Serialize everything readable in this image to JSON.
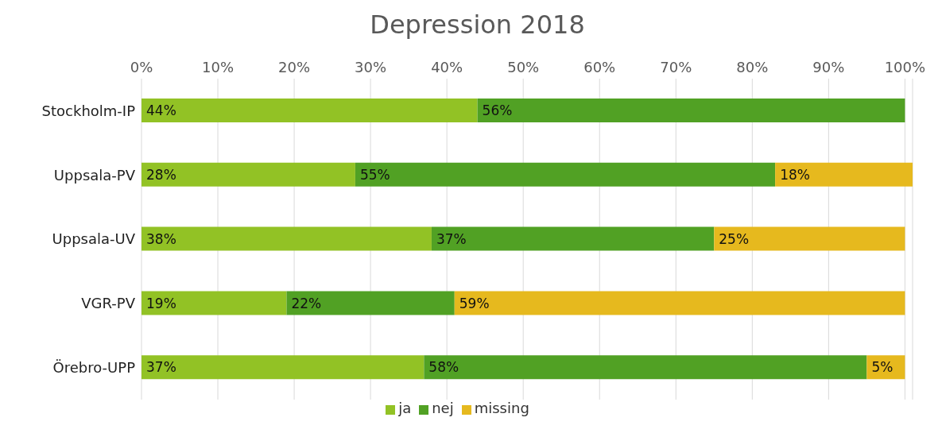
{
  "chart_data": {
    "type": "bar",
    "orientation": "horizontal",
    "stacked": true,
    "title": "Depression 2018",
    "categories": [
      "Stockholm-IP",
      "Uppsala-PV",
      "Uppsala-UV",
      "VGR-PV",
      "Örebro-UPP"
    ],
    "series": [
      {
        "name": "ja",
        "color": "#92c225",
        "values": [
          44,
          28,
          38,
          19,
          37
        ],
        "value_labels": [
          "44%",
          "28%",
          "38%",
          "19%",
          "37%"
        ]
      },
      {
        "name": "nej",
        "color": "#51a124",
        "values": [
          56,
          55,
          37,
          22,
          58
        ],
        "value_labels": [
          "56%",
          "55%",
          "37%",
          "22%",
          "58%"
        ]
      },
      {
        "name": "missing",
        "color": "#e6b91e",
        "values": [
          null,
          18,
          25,
          59,
          5
        ],
        "value_labels": [
          null,
          "18%",
          "25%",
          "59%",
          "5%"
        ]
      }
    ],
    "xlim": [
      0,
      101
    ],
    "xticks": [
      {
        "value": 0,
        "label": "0%"
      },
      {
        "value": 10,
        "label": "10%"
      },
      {
        "value": 20,
        "label": "20%"
      },
      {
        "value": 30,
        "label": "30%"
      },
      {
        "value": 40,
        "label": "40%"
      },
      {
        "value": 50,
        "label": "50%"
      },
      {
        "value": 60,
        "label": "60%"
      },
      {
        "value": 70,
        "label": "70%"
      },
      {
        "value": 80,
        "label": "80%"
      },
      {
        "value": 90,
        "label": "90%"
      },
      {
        "value": 100,
        "label": "100%"
      }
    ],
    "grid": "x",
    "legend": "bottom"
  }
}
